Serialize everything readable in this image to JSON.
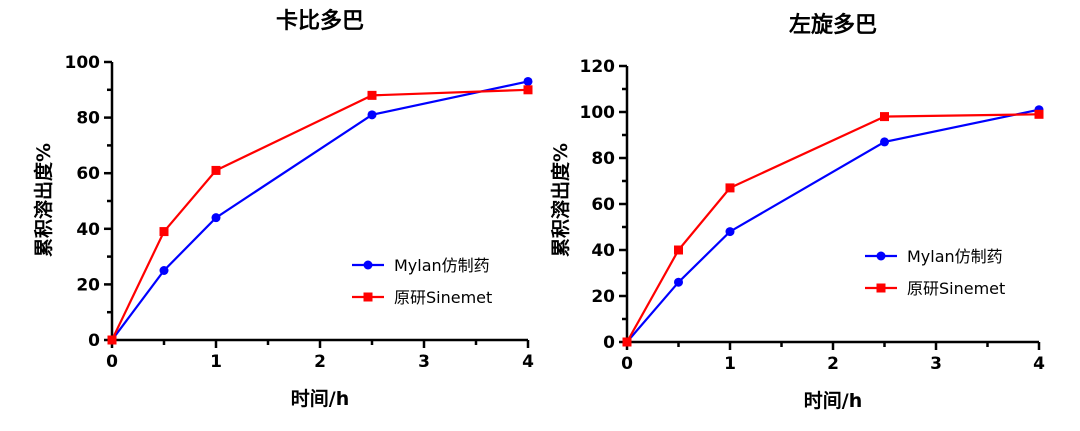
{
  "chart_data": [
    {
      "type": "line",
      "title": "卡比多巴",
      "xlabel": "时间/h",
      "ylabel": "累积溶出度%",
      "xlim": [
        0,
        4
      ],
      "ylim": [
        0,
        100
      ],
      "x_ticks": [
        "0",
        "1",
        "2",
        "3",
        "4"
      ],
      "y_ticks": [
        "0",
        "20",
        "40",
        "60",
        "80",
        "100"
      ],
      "x_tick_values": [
        0,
        1,
        2,
        3,
        4
      ],
      "y_tick_values": [
        0,
        20,
        40,
        60,
        80,
        100
      ],
      "legend_position": "center-right",
      "series": [
        {
          "name": "Mylan仿制药",
          "color": "#0000ff",
          "marker": "circle",
          "x": [
            0,
            0.5,
            1,
            2.5,
            4
          ],
          "y": [
            0,
            25,
            44,
            81,
            93
          ]
        },
        {
          "name": "原研Sinemet",
          "color": "#ff0000",
          "marker": "square",
          "x": [
            0,
            0.5,
            1,
            2.5,
            4
          ],
          "y": [
            0,
            39,
            61,
            88,
            90
          ]
        }
      ]
    },
    {
      "type": "line",
      "title": "左旋多巴",
      "xlabel": "时间/h",
      "ylabel": "累积溶出度%",
      "xlim": [
        0,
        4
      ],
      "ylim": [
        0,
        120
      ],
      "x_ticks": [
        "0",
        "1",
        "2",
        "3",
        "4"
      ],
      "y_ticks": [
        "0",
        "20",
        "40",
        "60",
        "80",
        "100",
        "120"
      ],
      "x_tick_values": [
        0,
        1,
        2,
        3,
        4
      ],
      "y_tick_values": [
        0,
        20,
        40,
        60,
        80,
        100,
        120
      ],
      "legend_position": "center-right",
      "series": [
        {
          "name": "Mylan仿制药",
          "color": "#0000ff",
          "marker": "circle",
          "x": [
            0,
            0.5,
            1,
            2.5,
            4
          ],
          "y": [
            0,
            26,
            48,
            87,
            101
          ]
        },
        {
          "name": "原研Sinemet",
          "color": "#ff0000",
          "marker": "square",
          "x": [
            0,
            0.5,
            1,
            2.5,
            4
          ],
          "y": [
            0,
            40,
            67,
            98,
            99
          ]
        }
      ]
    }
  ]
}
